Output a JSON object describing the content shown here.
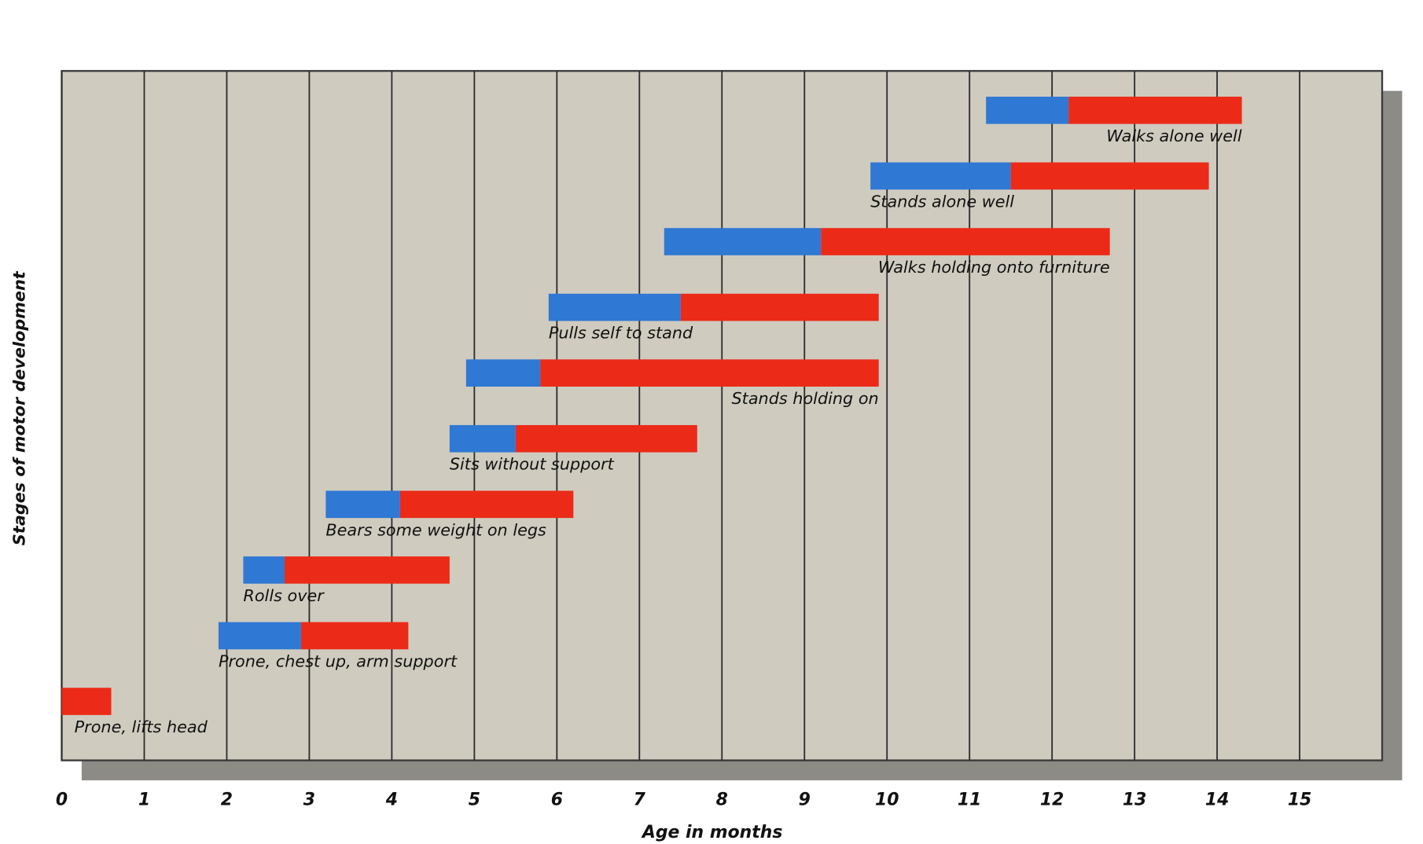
{
  "chart_data": {
    "type": "floating-bar",
    "x_label": "Age in months",
    "y_label": "Stages of motor development",
    "xlim": [
      0,
      16
    ],
    "xticks": [
      0,
      1,
      2,
      3,
      4,
      5,
      6,
      7,
      8,
      9,
      10,
      11,
      12,
      13,
      14,
      15
    ],
    "grid": true,
    "colors": [
      "#2f78d4",
      "#ec2a18"
    ],
    "bars": [
      {
        "label": "Prone, lifts head",
        "start": 0,
        "split": 0,
        "end": 0.6
      },
      {
        "label": "Prone, chest up, arm support",
        "start": 1.9,
        "split": 2.9,
        "end": 4.2
      },
      {
        "label": "Rolls over",
        "start": 2.2,
        "split": 2.7,
        "end": 4.7
      },
      {
        "label": "Bears some weight on legs",
        "start": 3.2,
        "split": 4.1,
        "end": 6.2
      },
      {
        "label": "Sits without support",
        "start": 4.7,
        "split": 5.5,
        "end": 7.7
      },
      {
        "label": "Stands holding on",
        "start": 4.9,
        "split": 5.8,
        "end": 9.9
      },
      {
        "label": "Pulls self to stand",
        "start": 5.9,
        "split": 7.5,
        "end": 9.9
      },
      {
        "label": "Walks holding onto furniture",
        "start": 7.3,
        "split": 9.2,
        "end": 12.7
      },
      {
        "label": "Stands alone well",
        "start": 9.8,
        "split": 11.5,
        "end": 13.9
      },
      {
        "label": "Walks alone well",
        "start": 11.2,
        "split": 12.2,
        "end": 14.3
      }
    ]
  }
}
